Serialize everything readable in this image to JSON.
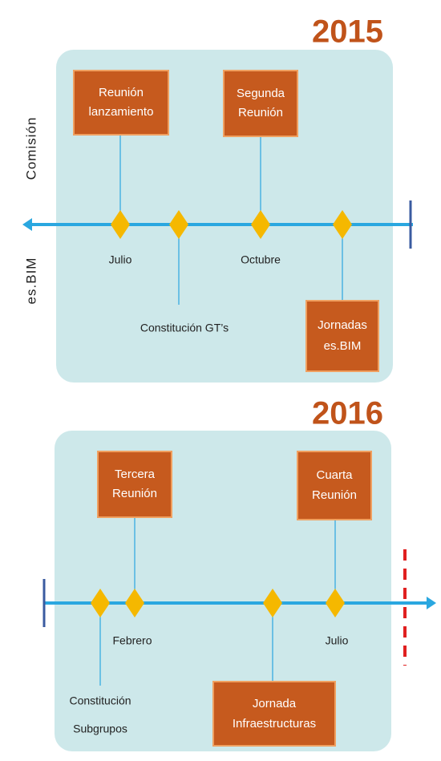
{
  "side_label": {
    "top": "Comisión",
    "bottom": "es.BIM"
  },
  "timelines": [
    {
      "year": "2015",
      "boxes": [
        [
          "Reunión",
          "lanzamiento"
        ],
        [
          "Segunda",
          "Reunión"
        ],
        [
          "Jornadas",
          "es.BIM"
        ]
      ],
      "labels": [
        "Julio",
        "Constitución GT’s",
        "Octubre"
      ]
    },
    {
      "year": "2016",
      "boxes": [
        [
          "Tercera",
          "Reunión"
        ],
        [
          "Cuarta",
          "Reunión"
        ],
        [
          "Jornada",
          "Infraestructuras"
        ]
      ],
      "labels": [
        "Constitución",
        "Subgrupos",
        "Febrero",
        "Julio"
      ]
    }
  ]
}
